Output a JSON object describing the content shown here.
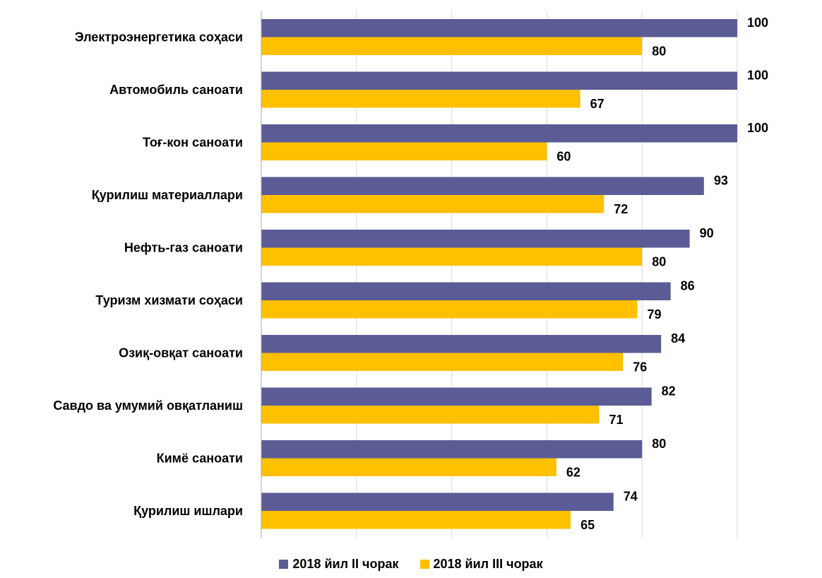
{
  "chart_data": {
    "type": "bar",
    "orientation": "horizontal",
    "categories": [
      "Электроэнергетика соҳаси",
      "Автомобиль саноати",
      "Тоғ-кон саноати",
      "Қурилиш материаллари",
      "Нефть-газ саноати",
      "Туризм хизмати соҳаси",
      "Озиқ-овқат саноати",
      "Савдо ва умумий овқатланиш",
      "Кимё саноати",
      "Қурилиш ишлари"
    ],
    "series": [
      {
        "name": "2018 йил II чорак",
        "color": "#5B5B96",
        "values": [
          100,
          100,
          100,
          93,
          90,
          86,
          84,
          82,
          80,
          74
        ]
      },
      {
        "name": "2018 йил III чорак",
        "color": "#FFC000",
        "values": [
          80,
          67,
          60,
          72,
          80,
          79,
          76,
          71,
          62,
          65
        ]
      }
    ],
    "xlim": [
      0,
      100
    ],
    "grid": true,
    "data_labels": true,
    "legend_position": "bottom",
    "title": "",
    "xlabel": "",
    "ylabel": ""
  }
}
